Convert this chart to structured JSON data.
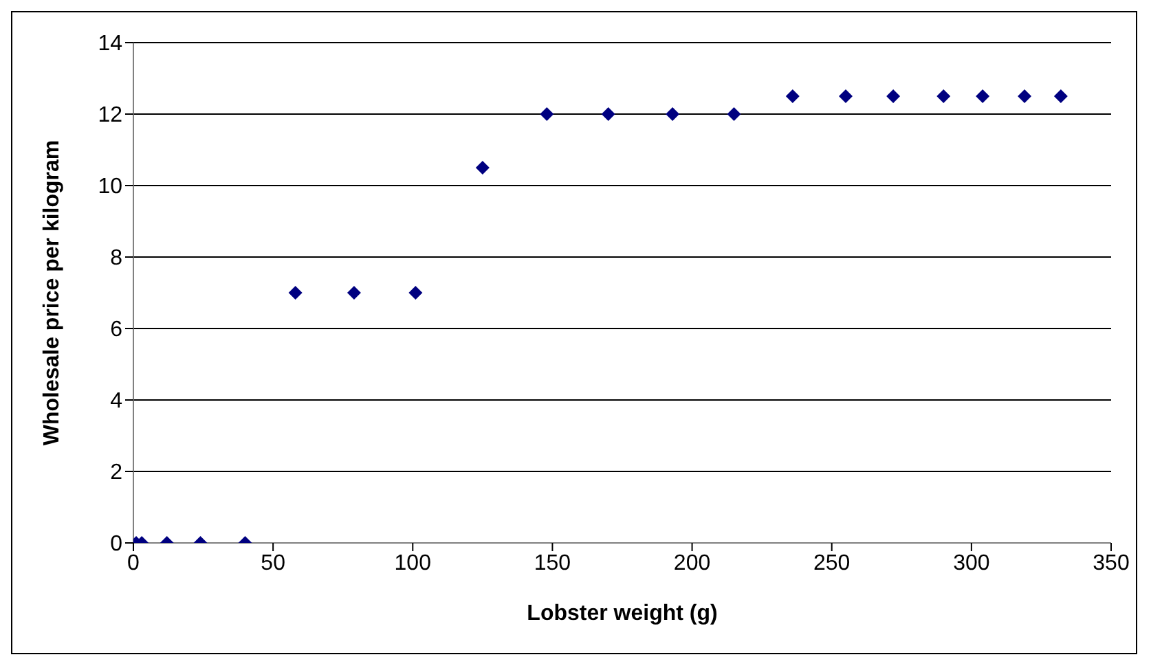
{
  "chart_data": {
    "type": "scatter",
    "xlabel": "Lobster weight (g)",
    "ylabel": "Wholesale price per kilogram",
    "x": [
      1,
      3,
      12,
      24,
      40,
      58,
      79,
      101,
      125,
      148,
      170,
      193,
      215,
      236,
      255,
      272,
      290,
      304,
      319,
      332
    ],
    "values": [
      0,
      0,
      0,
      0,
      0,
      7,
      7,
      7,
      10.5,
      12,
      12,
      12,
      12,
      12.5,
      12.5,
      12.5,
      12.5,
      12.5,
      12.5,
      12.5
    ],
    "color": "#000080",
    "marker": "diamond",
    "xlim": [
      0,
      350
    ],
    "xticks": [
      0,
      50,
      100,
      150,
      200,
      250,
      300,
      350
    ],
    "ylim": [
      0,
      14
    ],
    "yticks": [
      0,
      2,
      4,
      6,
      8,
      10,
      12,
      14
    ],
    "grid": "y",
    "legend": false
  }
}
